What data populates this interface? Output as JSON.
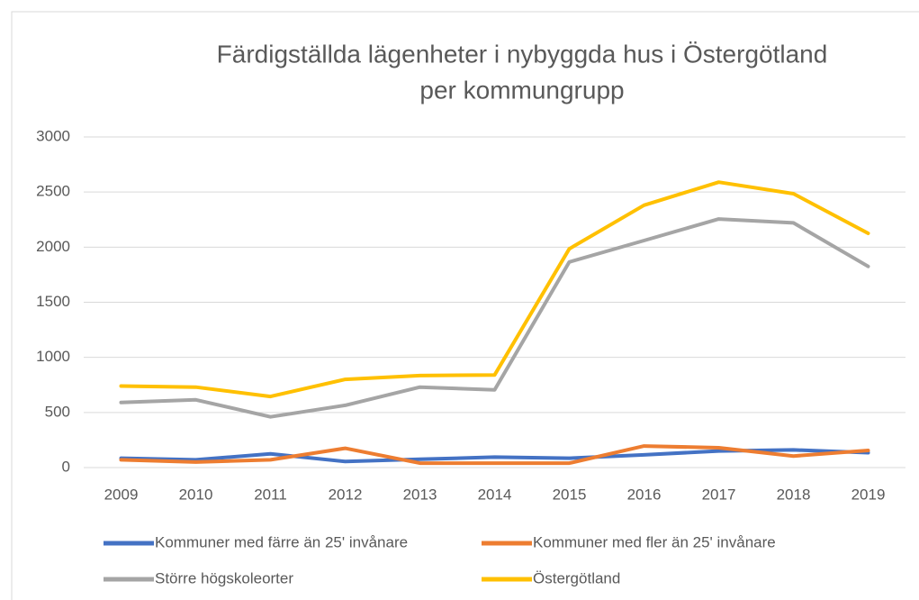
{
  "chart_data": {
    "type": "line",
    "title": "Färdigställda lägenheter i nybyggda hus i Östergötland",
    "subtitle": "per kommungrupp",
    "categories": [
      "2009",
      "2010",
      "2011",
      "2012",
      "2013",
      "2014",
      "2015",
      "2016",
      "2017",
      "2018",
      "2019"
    ],
    "series": [
      {
        "name": "Kommuner med färre än 25' invånare",
        "color": "#4472c4",
        "values": [
          85,
          70,
          125,
          55,
          75,
          95,
          85,
          115,
          150,
          160,
          135
        ]
      },
      {
        "name": "Kommuner med fler än 25' invånare",
        "color": "#ed7d31",
        "values": [
          70,
          50,
          70,
          175,
          40,
          40,
          40,
          195,
          180,
          105,
          155
        ]
      },
      {
        "name": "Större högskoleorter",
        "color": "#a5a5a5",
        "values": [
          590,
          615,
          460,
          565,
          730,
          705,
          1865,
          2060,
          2255,
          2220,
          1825
        ]
      },
      {
        "name": "Östergötland",
        "color": "#ffc000",
        "values": [
          740,
          730,
          645,
          800,
          835,
          840,
          1985,
          2380,
          2590,
          2485,
          2125
        ]
      }
    ],
    "ylim": [
      0,
      3000
    ],
    "yticks": [
      0,
      500,
      1000,
      1500,
      2000,
      2500,
      3000
    ],
    "grid": true
  }
}
